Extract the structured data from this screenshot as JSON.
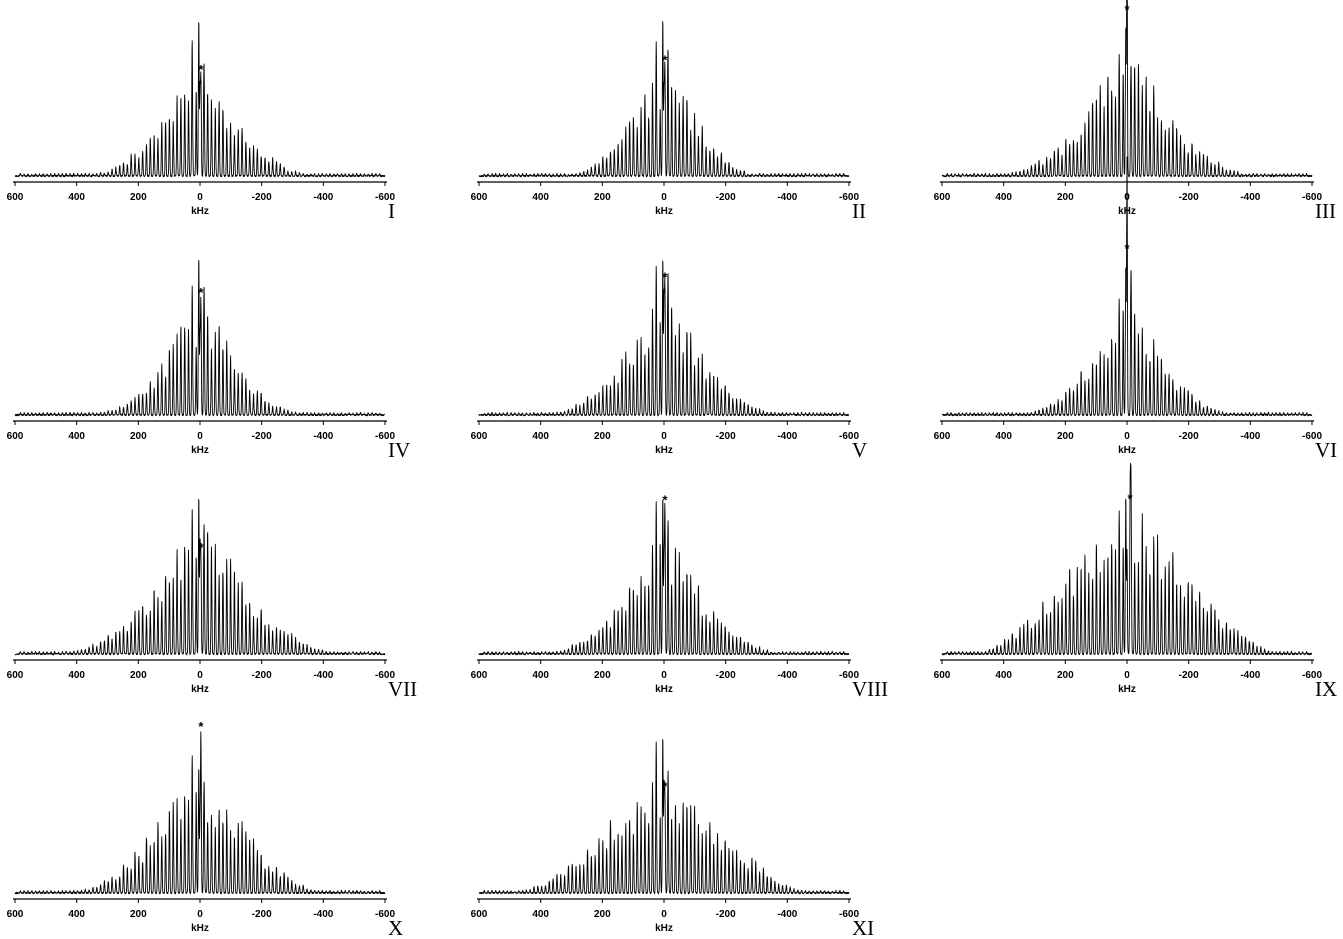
{
  "chart_data": [
    {
      "type": "line",
      "panel": "I",
      "xlabel": "kHz",
      "x_ticks": [
        "600",
        "400",
        "200",
        "0",
        "-200",
        "-400",
        "-600"
      ],
      "xlim": [
        600,
        -600
      ],
      "marker": "*",
      "marker_x": -3,
      "max_peak_x": 4,
      "relative_heights": {
        "max_peak": 1.0,
        "marker_peak": 0.62
      },
      "envelope": {
        "width_khz": 170,
        "broad_width_khz": 260,
        "broad_level": 0.05,
        "asymmetry": 0.0
      }
    },
    {
      "type": "line",
      "panel": "II",
      "xlabel": "kHz",
      "x_ticks": [
        "600",
        "400",
        "200",
        "0",
        "-200",
        "-400",
        "-600"
      ],
      "xlim": [
        600,
        -600
      ],
      "marker": "*",
      "marker_x": -3,
      "max_peak_x": 4,
      "relative_heights": {
        "max_peak": 1.0,
        "marker_peak": 0.68
      },
      "envelope": {
        "width_khz": 140,
        "broad_width_khz": 220,
        "broad_level": 0.08,
        "asymmetry": 0.0
      }
    },
    {
      "type": "line",
      "panel": "III",
      "xlabel": "kHz",
      "x_ticks": [
        "600",
        "400",
        "200",
        "0",
        "-200",
        "-400",
        "-600"
      ],
      "xlim": [
        600,
        -600
      ],
      "marker": "*",
      "marker_x": 0,
      "max_peak_x": 4,
      "relative_heights": {
        "max_peak": 0.95,
        "marker_peak": 1.0
      },
      "envelope": {
        "width_khz": 130,
        "broad_width_khz": 300,
        "broad_level": 0.18,
        "asymmetry": 0.0
      }
    },
    {
      "type": "line",
      "panel": "IV",
      "xlabel": "kHz",
      "x_ticks": [
        "600",
        "400",
        "200",
        "0",
        "-200",
        "-400",
        "-600"
      ],
      "xlim": [
        600,
        -600
      ],
      "marker": "*",
      "marker_x": -3,
      "max_peak_x": 4,
      "relative_heights": {
        "max_peak": 1.0,
        "marker_peak": 0.72
      },
      "envelope": {
        "width_khz": 120,
        "broad_width_khz": 260,
        "broad_level": 0.12,
        "asymmetry": 0.0
      }
    },
    {
      "type": "line",
      "panel": "V",
      "xlabel": "kHz",
      "x_ticks": [
        "600",
        "400",
        "200",
        "0",
        "-200",
        "-400",
        "-600"
      ],
      "xlim": [
        600,
        -600
      ],
      "marker": "*",
      "marker_x": -3,
      "max_peak_x": 4,
      "relative_heights": {
        "max_peak": 1.0,
        "marker_peak": 0.82
      },
      "envelope": {
        "width_khz": 130,
        "broad_width_khz": 280,
        "broad_level": 0.15,
        "asymmetry": 0.0
      }
    },
    {
      "type": "line",
      "panel": "VI",
      "xlabel": "kHz",
      "x_ticks": [
        "600",
        "400",
        "200",
        "0",
        "-200",
        "-400",
        "-600"
      ],
      "xlim": [
        600,
        -600
      ],
      "marker": "*",
      "marker_x": 0,
      "max_peak_x": 4,
      "relative_heights": {
        "max_peak": 0.95,
        "marker_peak": 1.0
      },
      "envelope": {
        "width_khz": 140,
        "broad_width_khz": 260,
        "broad_level": 0.1,
        "asymmetry": 0.0
      }
    },
    {
      "type": "line",
      "panel": "VII",
      "xlabel": "kHz",
      "x_ticks": [
        "600",
        "400",
        "200",
        "0",
        "-200",
        "-400",
        "-600"
      ],
      "xlim": [
        600,
        -600
      ],
      "marker": "*",
      "marker_x": -3,
      "max_peak_x": 4,
      "relative_heights": {
        "max_peak": 1.0,
        "marker_peak": 0.62
      },
      "envelope": {
        "width_khz": 150,
        "broad_width_khz": 320,
        "broad_level": 0.2,
        "asymmetry": 0.0
      }
    },
    {
      "type": "line",
      "panel": "VIII",
      "xlabel": "kHz",
      "x_ticks": [
        "600",
        "400",
        "200",
        "0",
        "-200",
        "-400",
        "-600"
      ],
      "xlim": [
        600,
        -600
      ],
      "marker": "*",
      "marker_x": -3,
      "max_peak_x": 4,
      "relative_heights": {
        "max_peak": 1.0,
        "marker_peak": 0.92
      },
      "envelope": {
        "width_khz": 130,
        "broad_width_khz": 280,
        "broad_level": 0.15,
        "asymmetry": 0.0
      }
    },
    {
      "type": "line",
      "panel": "IX",
      "xlabel": "kHz",
      "x_ticks": [
        "600",
        "400",
        "200",
        "0",
        "-200",
        "-400",
        "-600"
      ],
      "xlim": [
        600,
        -600
      ],
      "marker": "*",
      "marker_x": -10,
      "max_peak_x": 4,
      "relative_heights": {
        "max_peak": 1.0,
        "marker_peak": 0.93
      },
      "envelope": {
        "width_khz": 190,
        "broad_width_khz": 360,
        "broad_level": 0.3,
        "asymmetry": 0.0
      }
    },
    {
      "type": "line",
      "panel": "X",
      "xlabel": "kHz",
      "x_ticks": [
        "600",
        "400",
        "200",
        "0",
        "-200",
        "-400",
        "-600"
      ],
      "xlim": [
        600,
        -600
      ],
      "marker": "*",
      "marker_x": -3,
      "max_peak_x": 4,
      "relative_heights": {
        "max_peak": 0.8,
        "marker_peak": 1.0
      },
      "envelope": {
        "width_khz": 180,
        "broad_width_khz": 300,
        "broad_level": 0.12,
        "asymmetry": 0.0
      }
    },
    {
      "type": "line",
      "panel": "XI",
      "xlabel": "kHz",
      "x_ticks": [
        "600",
        "400",
        "200",
        "0",
        "-200",
        "-400",
        "-600"
      ],
      "xlim": [
        600,
        -600
      ],
      "marker": "*",
      "marker_x": -3,
      "max_peak_x": 4,
      "relative_heights": {
        "max_peak": 1.0,
        "marker_peak": 0.62
      },
      "envelope": {
        "width_khz": 240,
        "broad_width_khz": 340,
        "broad_level": 0.12,
        "asymmetry": 0.0
      }
    }
  ]
}
